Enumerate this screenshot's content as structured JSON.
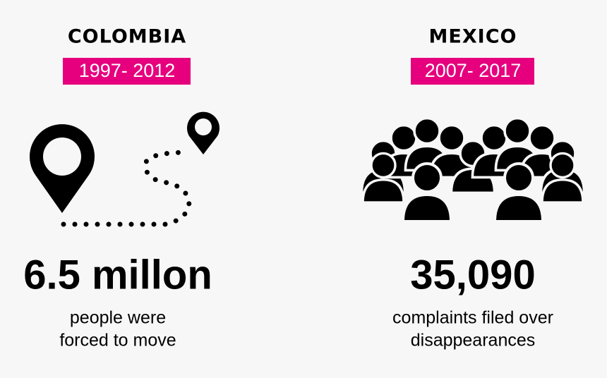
{
  "panels": [
    {
      "country": "COLOMBIA",
      "period": "1997- 2012",
      "stat": "6.5 millon",
      "description": [
        "people were",
        "forced to move"
      ]
    },
    {
      "country": "MEXICO",
      "period": "2007- 2017",
      "stat": "35,090",
      "description": [
        "complaints filed over",
        "disappearances"
      ]
    }
  ]
}
